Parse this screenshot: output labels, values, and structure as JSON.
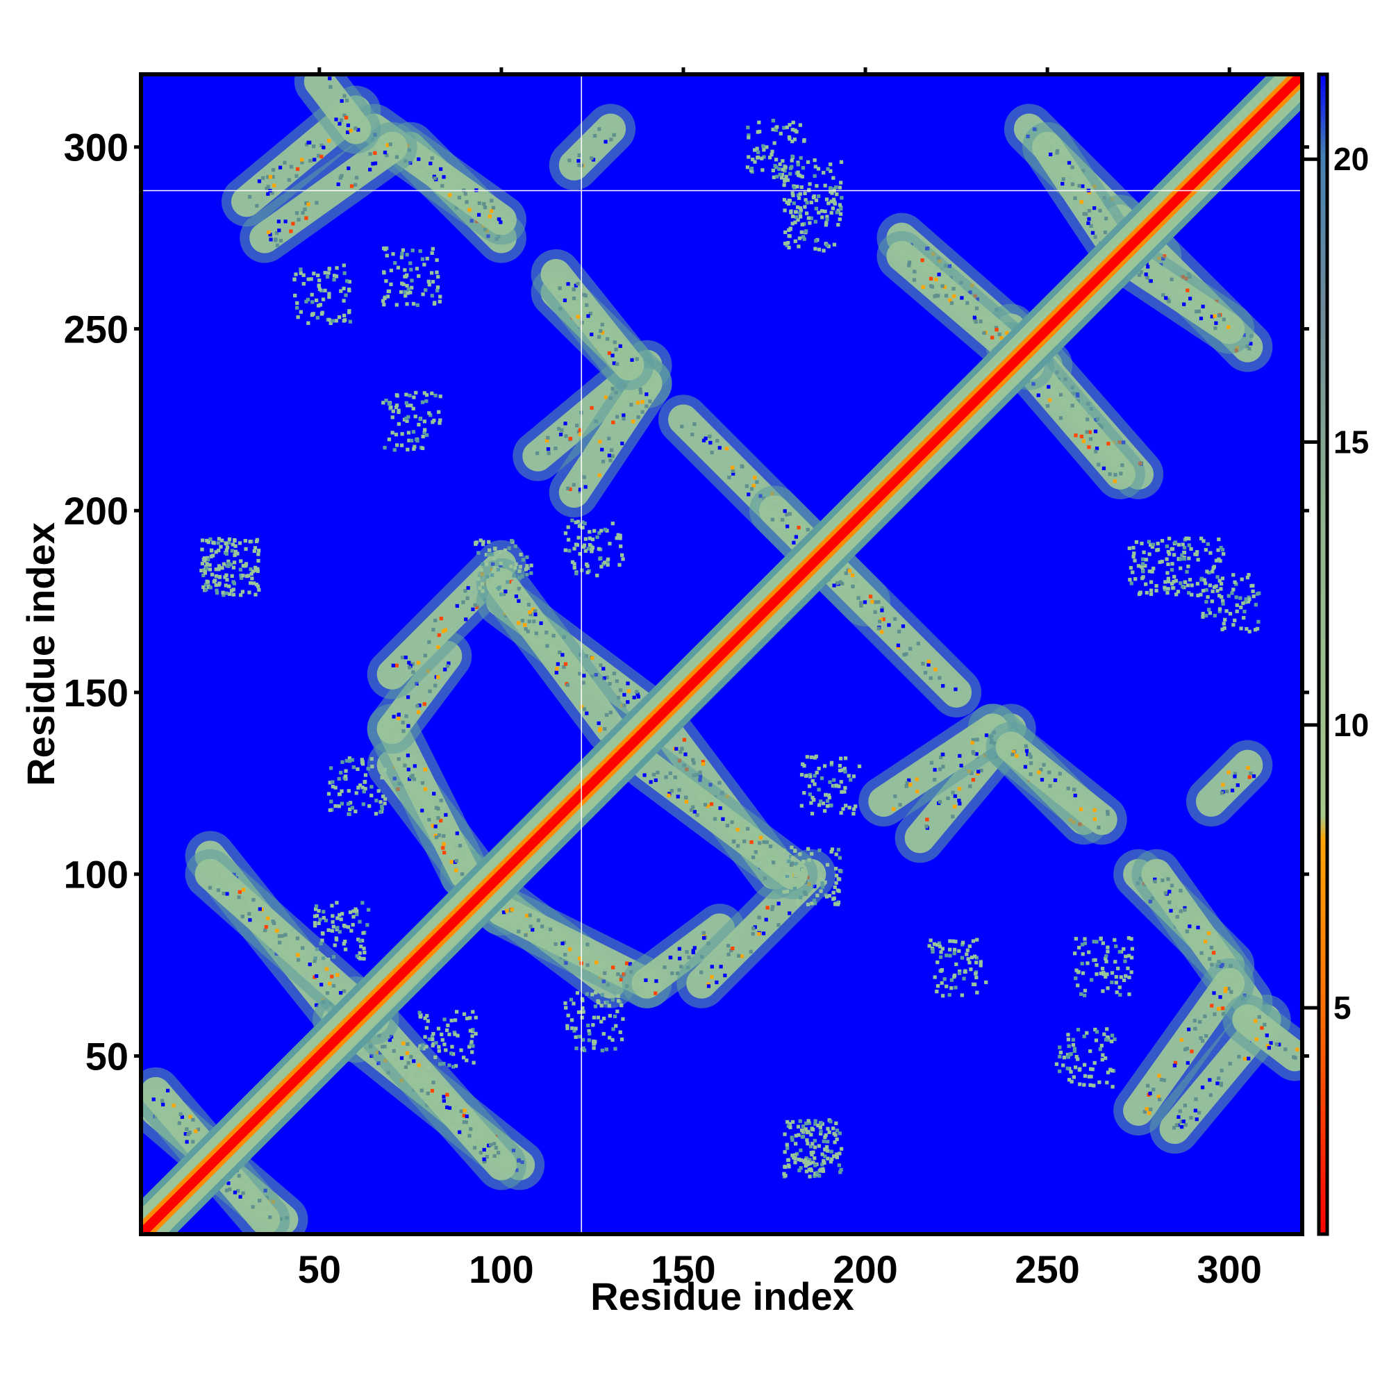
{
  "chart_data": {
    "type": "heatmap",
    "title": "",
    "xlabel": "Residue index",
    "ylabel": "Residue index",
    "xlim": [
      1,
      320
    ],
    "ylim": [
      1,
      320
    ],
    "x_ticks": [
      50,
      100,
      150,
      200,
      250,
      300
    ],
    "y_ticks": [
      50,
      100,
      150,
      200,
      250,
      300
    ],
    "colorbar": {
      "ticks": [
        5,
        10,
        15,
        20
      ],
      "range": [
        1,
        21.5
      ],
      "colors": [
        "#ff0000",
        "#ff6a00",
        "#ffa500",
        "#8fbc8f",
        "#6e8b8b",
        "#4682b4",
        "#0000ff"
      ]
    },
    "colors": {
      "background": "#0000ff",
      "diagonal_core": "#ff0000",
      "diagonal_inner": "#ff8c00",
      "contact_band": "#9ac49a",
      "contact_band_edge": "#5f9ea0",
      "guide_line": "#ffffff"
    },
    "guide_lines": {
      "x": 122,
      "y": 288
    },
    "symmetric": true,
    "contact_segments": [
      {
        "from": [
          5,
          35
        ],
        "to": [
          40,
          5
        ]
      },
      {
        "from": [
          20,
          105
        ],
        "to": [
          60,
          55
        ]
      },
      {
        "from": [
          60,
          65
        ],
        "to": [
          100,
          20
        ]
      },
      {
        "from": [
          70,
          130
        ],
        "to": [
          100,
          90
        ]
      },
      {
        "from": [
          100,
          90
        ],
        "to": [
          140,
          70
        ]
      },
      {
        "from": [
          140,
          70
        ],
        "to": [
          160,
          85
        ]
      },
      {
        "from": [
          70,
          155
        ],
        "to": [
          100,
          185
        ]
      },
      {
        "from": [
          100,
          175
        ],
        "to": [
          140,
          145
        ]
      },
      {
        "from": [
          140,
          130
        ],
        "to": [
          180,
          100
        ]
      },
      {
        "from": [
          110,
          215
        ],
        "to": [
          140,
          240
        ]
      },
      {
        "from": [
          150,
          225
        ],
        "to": [
          200,
          175
        ]
      },
      {
        "from": [
          115,
          260
        ],
        "to": [
          140,
          235
        ]
      },
      {
        "from": [
          30,
          285
        ],
        "to": [
          60,
          310
        ]
      },
      {
        "from": [
          75,
          300
        ],
        "to": [
          100,
          275
        ]
      },
      {
        "from": [
          210,
          275
        ],
        "to": [
          250,
          240
        ]
      },
      {
        "from": [
          240,
          245
        ],
        "to": [
          270,
          210
        ]
      },
      {
        "from": [
          245,
          305
        ],
        "to": [
          280,
          270
        ]
      },
      {
        "from": [
          270,
          270
        ],
        "to": [
          300,
          250
        ]
      },
      {
        "from": [
          205,
          120
        ],
        "to": [
          235,
          140
        ]
      },
      {
        "from": [
          240,
          135
        ],
        "to": [
          265,
          115
        ]
      },
      {
        "from": [
          280,
          100
        ],
        "to": [
          305,
          65
        ]
      },
      {
        "from": [
          275,
          35
        ],
        "to": [
          300,
          70
        ]
      },
      {
        "from": [
          295,
          120
        ],
        "to": [
          305,
          130
        ]
      },
      {
        "from": [
          305,
          60
        ],
        "to": [
          318,
          50
        ]
      }
    ],
    "contact_blobs": [
      {
        "center": [
          25,
          185
        ]
      },
      {
        "center": [
          185,
          100
        ]
      },
      {
        "center": [
          185,
          280
        ]
      },
      {
        "center": [
          185,
          25
        ]
      },
      {
        "center": [
          225,
          75
        ]
      },
      {
        "center": [
          260,
          50
        ]
      },
      {
        "center": [
          265,
          75
        ]
      },
      {
        "center": [
          290,
          185
        ]
      },
      {
        "center": [
          300,
          175
        ]
      },
      {
        "center": [
          85,
          55
        ]
      },
      {
        "center": [
          125,
          190
        ]
      },
      {
        "center": [
          60,
          125
        ]
      }
    ]
  }
}
